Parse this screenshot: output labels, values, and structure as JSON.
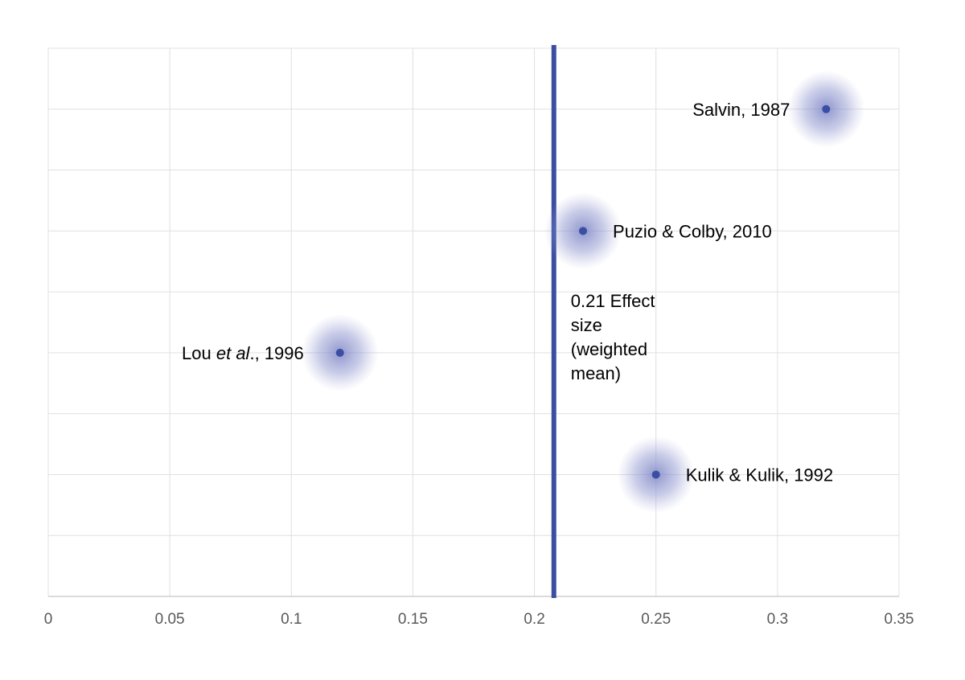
{
  "chart_data": {
    "type": "scatter",
    "xlim": [
      0,
      0.35
    ],
    "ylim": [
      0,
      9
    ],
    "x_ticks": [
      "0",
      "0.05",
      "0.1",
      "0.15",
      "0.2",
      "0.25",
      "0.3",
      "0.35"
    ],
    "x_tick_values": [
      0,
      0.05,
      0.1,
      0.15,
      0.2,
      0.25,
      0.3,
      0.35
    ],
    "y_grid_count": 9,
    "grid": true,
    "points": [
      {
        "x": 0.32,
        "y": 8,
        "label": "Salvin, 1987",
        "label_side": "left"
      },
      {
        "x": 0.22,
        "y": 6,
        "label": "Puzio & Colby, 2010",
        "label_side": "right"
      },
      {
        "x": 0.12,
        "y": 4,
        "label_parts": [
          "Lou ",
          "et al",
          "., 1996"
        ],
        "label_side": "left"
      },
      {
        "x": 0.25,
        "y": 2,
        "label": "Kulik & Kulik, 1992",
        "label_side": "right"
      }
    ],
    "reference_line": {
      "x": 0.208,
      "label_lines": [
        "0.21 Effect",
        "size",
        "(weighted",
        "mean)"
      ]
    },
    "colors": {
      "point": "#3a4fa3",
      "halo": "#7b83c6",
      "reference_line": "#3a4fa3",
      "grid": "#e0e0e0"
    }
  }
}
